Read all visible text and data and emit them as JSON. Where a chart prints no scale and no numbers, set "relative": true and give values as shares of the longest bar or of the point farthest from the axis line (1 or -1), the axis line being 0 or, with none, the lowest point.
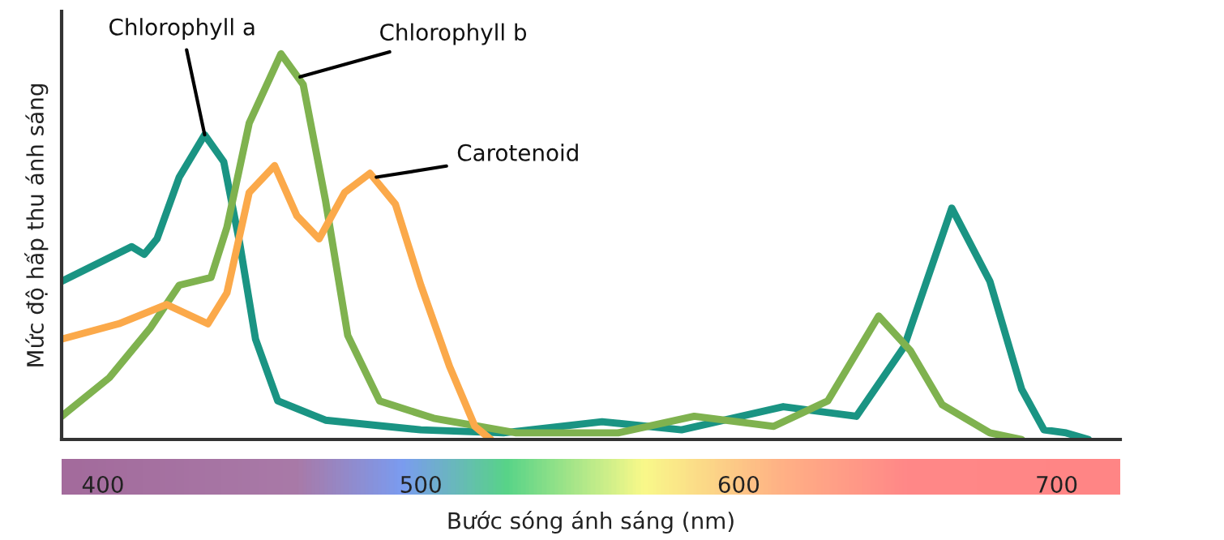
{
  "chart_data": {
    "type": "line",
    "relative": true,
    "xlabel": "Bước sóng ánh sáng (nm)",
    "ylabel": "Mức độ hấp thu ánh sáng",
    "xlim": [
      387,
      720
    ],
    "xticks": [
      400,
      500,
      600,
      700
    ],
    "grid": false,
    "legend": false,
    "marker": "none",
    "line_style": "solid",
    "series": [
      {
        "color": "#1a9483",
        "x": [
          387,
          409,
          413,
          417,
          424,
          432,
          438,
          443,
          448,
          455,
          470,
          500,
          526,
          557,
          582,
          614,
          637,
          652,
          667,
          679,
          689,
          696,
          703,
          710
        ],
        "values": [
          0.41,
          0.5,
          0.48,
          0.52,
          0.68,
          0.79,
          0.72,
          0.51,
          0.26,
          0.1,
          0.05,
          0.025,
          0.017,
          0.046,
          0.025,
          0.085,
          0.06,
          0.24,
          0.6,
          0.41,
          0.13,
          0.025,
          0.017,
          0
        ]
      },
      {
        "color": "#7fb24f",
        "x": [
          387,
          402,
          415,
          424,
          434,
          439,
          446,
          456,
          463,
          470,
          477,
          487,
          504,
          530,
          562,
          586,
          611,
          628,
          644,
          654,
          664,
          679,
          689
        ],
        "values": [
          0.06,
          0.16,
          0.29,
          0.4,
          0.42,
          0.55,
          0.82,
          1.0,
          0.92,
          0.62,
          0.27,
          0.1,
          0.055,
          0.017,
          0.017,
          0.06,
          0.034,
          0.1,
          0.32,
          0.23,
          0.09,
          0.017,
          0
        ]
      },
      {
        "color": "#fba94a",
        "x": [
          387,
          405,
          420,
          433,
          439,
          446,
          454,
          461,
          468,
          476,
          484,
          492,
          500,
          509,
          517,
          522
        ],
        "values": [
          0.26,
          0.3,
          0.35,
          0.3,
          0.38,
          0.64,
          0.71,
          0.58,
          0.52,
          0.64,
          0.69,
          0.61,
          0.4,
          0.19,
          0.034,
          0
        ]
      }
    ],
    "annotations": [
      {
        "text": "Chlorophyll a",
        "x": 432,
        "y": 0.79
      },
      {
        "text": "Chlorophyll b",
        "x": 462,
        "y": 0.94
      },
      {
        "text": "Carotenoid",
        "x": 486,
        "y": 0.68
      }
    ]
  }
}
